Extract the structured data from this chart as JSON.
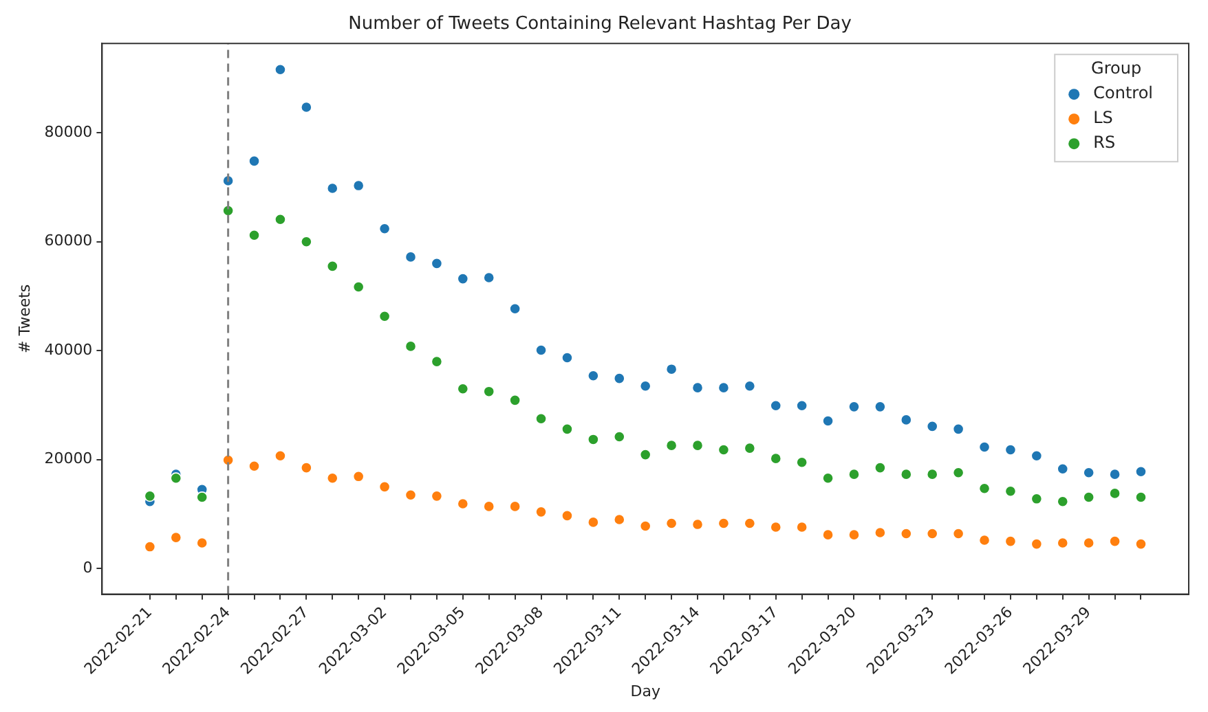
{
  "chart_data": {
    "type": "scatter",
    "title": "Number of Tweets Containing Relevant Hashtag Per Day",
    "xlabel": "Day",
    "ylabel": "# Tweets",
    "legend_title": "Group",
    "x": [
      "2022-02-21",
      "2022-02-22",
      "2022-02-23",
      "2022-02-24",
      "2022-02-25",
      "2022-02-26",
      "2022-02-27",
      "2022-02-28",
      "2022-03-01",
      "2022-03-02",
      "2022-03-03",
      "2022-03-04",
      "2022-03-05",
      "2022-03-06",
      "2022-03-07",
      "2022-03-08",
      "2022-03-09",
      "2022-03-10",
      "2022-03-11",
      "2022-03-12",
      "2022-03-13",
      "2022-03-14",
      "2022-03-15",
      "2022-03-16",
      "2022-03-17",
      "2022-03-18",
      "2022-03-19",
      "2022-03-20",
      "2022-03-21",
      "2022-03-22",
      "2022-03-23",
      "2022-03-24",
      "2022-03-25",
      "2022-03-26",
      "2022-03-27",
      "2022-03-28",
      "2022-03-29",
      "2022-03-30",
      "2022-03-31"
    ],
    "series": [
      {
        "name": "Control",
        "color": "#1f77b4",
        "values": [
          12300,
          17300,
          14500,
          71200,
          74800,
          91600,
          84700,
          69800,
          70300,
          62400,
          57200,
          56000,
          53200,
          53400,
          47700,
          40100,
          38700,
          35400,
          34900,
          33500,
          36600,
          33200,
          33200,
          33500,
          29900,
          29900,
          27100,
          29700,
          29700,
          27300,
          26100,
          25600,
          22300,
          21800,
          20700,
          18300,
          17600,
          17300,
          17800
        ]
      },
      {
        "name": "LS",
        "color": "#ff7f0e",
        "values": [
          4000,
          5700,
          4700,
          19900,
          18800,
          20700,
          18500,
          16600,
          16900,
          15000,
          13500,
          13300,
          11900,
          11400,
          11400,
          10400,
          9700,
          8500,
          9000,
          7800,
          8300,
          8100,
          8300,
          8300,
          7600,
          7600,
          6200,
          6200,
          6600,
          6400,
          6400,
          6400,
          5200,
          5000,
          4500,
          4700,
          4700,
          5000,
          4500
        ]
      },
      {
        "name": "RS",
        "color": "#2ca02c",
        "values": [
          13300,
          16600,
          13100,
          65700,
          61200,
          64100,
          60000,
          55500,
          51700,
          46300,
          40800,
          38000,
          33000,
          32500,
          30900,
          27500,
          25600,
          23700,
          24200,
          20900,
          22600,
          22600,
          21800,
          22100,
          20200,
          19500,
          16600,
          17300,
          18500,
          17300,
          17300,
          17600,
          14700,
          14200,
          12800,
          12300,
          13100,
          13800,
          13100
        ]
      }
    ],
    "xlim": [
      "2022-02-19T04:00",
      "2022-04-01T20:00"
    ],
    "xticks": [
      {
        "value": "2022-02-21",
        "label": "2022-02-21"
      },
      {
        "value": "2022-02-22",
        "label": null
      },
      {
        "value": "2022-02-23",
        "label": null
      },
      {
        "value": "2022-02-24",
        "label": "2022-02-24"
      },
      {
        "value": "2022-02-25",
        "label": null
      },
      {
        "value": "2022-02-26",
        "label": null
      },
      {
        "value": "2022-02-27",
        "label": "2022-02-27"
      },
      {
        "value": "2022-02-28",
        "label": null
      },
      {
        "value": "2022-03-01",
        "label": null
      },
      {
        "value": "2022-03-02",
        "label": "2022-03-02"
      },
      {
        "value": "2022-03-03",
        "label": null
      },
      {
        "value": "2022-03-04",
        "label": null
      },
      {
        "value": "2022-03-05",
        "label": "2022-03-05"
      },
      {
        "value": "2022-03-06",
        "label": null
      },
      {
        "value": "2022-03-07",
        "label": null
      },
      {
        "value": "2022-03-08",
        "label": "2022-03-08"
      },
      {
        "value": "2022-03-09",
        "label": null
      },
      {
        "value": "2022-03-10",
        "label": null
      },
      {
        "value": "2022-03-11",
        "label": "2022-03-11"
      },
      {
        "value": "2022-03-12",
        "label": null
      },
      {
        "value": "2022-03-13",
        "label": null
      },
      {
        "value": "2022-03-14",
        "label": "2022-03-14"
      },
      {
        "value": "2022-03-15",
        "label": null
      },
      {
        "value": "2022-03-16",
        "label": null
      },
      {
        "value": "2022-03-17",
        "label": "2022-03-17"
      },
      {
        "value": "2022-03-18",
        "label": null
      },
      {
        "value": "2022-03-19",
        "label": null
      },
      {
        "value": "2022-03-20",
        "label": "2022-03-20"
      },
      {
        "value": "2022-03-21",
        "label": null
      },
      {
        "value": "2022-03-22",
        "label": null
      },
      {
        "value": "2022-03-23",
        "label": "2022-03-23"
      },
      {
        "value": "2022-03-24",
        "label": null
      },
      {
        "value": "2022-03-25",
        "label": null
      },
      {
        "value": "2022-03-26",
        "label": "2022-03-26"
      },
      {
        "value": "2022-03-27",
        "label": null
      },
      {
        "value": "2022-03-28",
        "label": null
      },
      {
        "value": "2022-03-29",
        "label": "2022-03-29"
      },
      {
        "value": "2022-03-30",
        "label": null
      },
      {
        "value": "2022-03-31",
        "label": null
      }
    ],
    "ylim": [
      -4700,
      96400
    ],
    "yticks": [
      0,
      20000,
      40000,
      60000,
      80000
    ],
    "ref_lines": [
      {
        "axis": "x",
        "value": "2022-02-24",
        "color": "#808080",
        "line_style": "dashed"
      }
    ],
    "grid": false,
    "legend": "top right",
    "marker": "circle"
  }
}
